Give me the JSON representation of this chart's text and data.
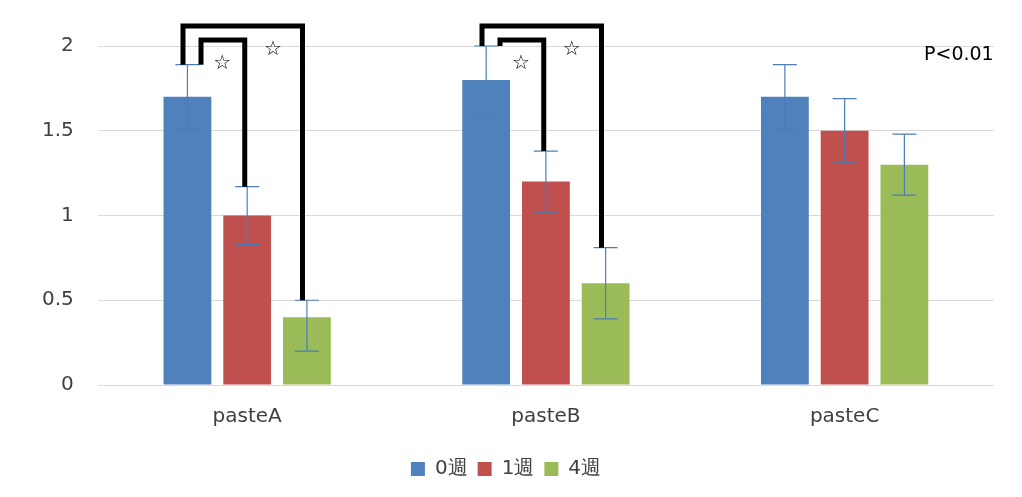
{
  "chart_data": {
    "type": "bar",
    "categories": [
      "pasteA",
      "pasteB",
      "pasteC"
    ],
    "series": [
      {
        "name": "0週",
        "color": "#4f81bd",
        "values": [
          1.7,
          1.8,
          1.7
        ],
        "errors": [
          0.19,
          0.2,
          0.19
        ]
      },
      {
        "name": "1週",
        "color": "#c0504d",
        "values": [
          1.0,
          1.2,
          1.5
        ],
        "errors": [
          0.17,
          0.18,
          0.19
        ]
      },
      {
        "name": "4週",
        "color": "#9bbb59",
        "values": [
          0.4,
          0.6,
          1.3
        ],
        "errors": [
          [
            0.2,
            0.5
          ],
          0.21,
          0.18
        ]
      }
    ],
    "ylim": [
      0,
      2
    ],
    "yticks": [
      0,
      0.5,
      1,
      1.5,
      2
    ],
    "grid": "y",
    "legend": "bottom",
    "annotations": [
      "☆",
      "☆",
      "☆",
      "☆",
      "P<0.01"
    ]
  }
}
